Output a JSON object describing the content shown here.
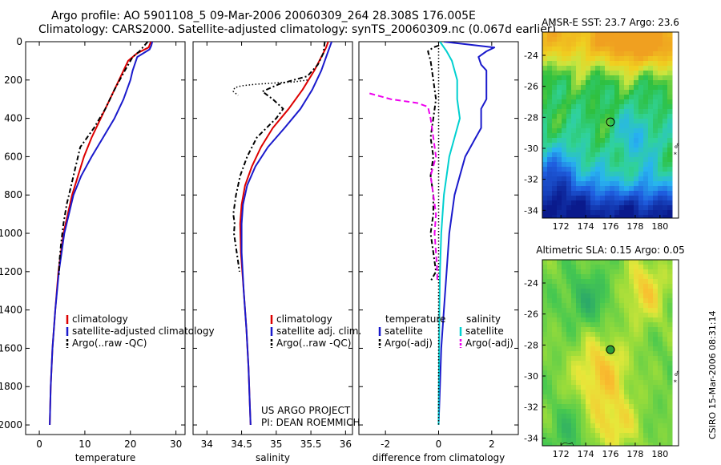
{
  "header": {
    "title_line1": "Argo profile: AO 5901108_5 09-Mar-2006 20060309_264 28.308S 176.005E",
    "title_line2": "Climatology: CARS2000. Satellite-adjusted climatology: synTS_20060309.nc (0.067d earlier)"
  },
  "credits": {
    "project": "US ARGO PROJECT",
    "pi": "PI: DEAN ROEMMICH",
    "stamp": "CSIRO 15-Mar-2006 08:31:14"
  },
  "colors": {
    "climatology": "#dd0000",
    "satellite": "#1a1acc",
    "argo": "#000000",
    "salinity_satellite": "#00d0d0",
    "salinity_argo": "#ee00ee"
  },
  "chart_data": [
    {
      "type": "line",
      "xlabel": "temperature",
      "ylabel": "",
      "xlim": [
        -3,
        32
      ],
      "ylim": [
        2050,
        0
      ],
      "xticks": [
        0,
        10,
        20,
        30
      ],
      "yticks": [
        0,
        200,
        400,
        600,
        800,
        1000,
        1200,
        1400,
        1600,
        1800,
        2000
      ],
      "legend": [
        "climatology",
        "satellite-adjusted climatology",
        "Argo(..raw -QC)"
      ],
      "series": [
        {
          "name": "climatology",
          "depth": [
            0,
            30,
            60,
            100,
            200,
            300,
            400,
            500,
            600,
            700,
            800,
            1000,
            1200,
            1400,
            1600,
            1800,
            2000
          ],
          "values": [
            24.5,
            24.0,
            21.5,
            19.5,
            17.5,
            15.5,
            13.5,
            11.5,
            9.8,
            8.5,
            7.2,
            5.3,
            4.2,
            3.5,
            2.9,
            2.5,
            2.3
          ]
        },
        {
          "name": "satellite-adjusted climatology",
          "depth": [
            0,
            20,
            40,
            80,
            150,
            200,
            300,
            400,
            500,
            600,
            700,
            800,
            1000,
            1200,
            1400,
            1600,
            1800,
            2000
          ],
          "values": [
            24.8,
            24.6,
            24.2,
            21.5,
            20.5,
            20.0,
            18.5,
            16.5,
            14.0,
            11.5,
            9.2,
            7.5,
            5.5,
            4.3,
            3.5,
            2.9,
            2.5,
            2.3
          ]
        },
        {
          "name": "Argo(..raw -QC)",
          "depth": [
            0,
            50,
            80,
            150,
            250,
            350,
            450,
            550,
            650,
            750,
            850,
            950,
            1050,
            1150,
            1220
          ],
          "values": [
            23.8,
            22.0,
            20.5,
            18.8,
            16.5,
            14.5,
            12.0,
            9.0,
            8.0,
            7.0,
            6.0,
            5.3,
            4.8,
            4.4,
            4.3
          ]
        }
      ]
    },
    {
      "type": "line",
      "xlabel": "salinity",
      "ylabel": "",
      "xlim": [
        33.8,
        36.1
      ],
      "ylim": [
        2050,
        0
      ],
      "xticks": [
        34,
        34.5,
        35,
        35.5,
        36
      ],
      "legend": [
        "climatology",
        "satellite adj. clim.",
        "Argo(..raw -QC)"
      ],
      "series": [
        {
          "name": "climatology",
          "depth": [
            0,
            30,
            80,
            150,
            250,
            350,
            450,
            550,
            650,
            750,
            850,
            950,
            1100,
            1300,
            1500,
            1700,
            1900,
            2000
          ],
          "values": [
            35.75,
            35.72,
            35.65,
            35.55,
            35.38,
            35.18,
            34.95,
            34.78,
            34.65,
            34.55,
            34.5,
            34.48,
            34.49,
            34.53,
            34.57,
            34.6,
            34.62,
            34.63
          ]
        },
        {
          "name": "satellite adj. clim.",
          "depth": [
            0,
            30,
            80,
            150,
            250,
            350,
            450,
            550,
            650,
            750,
            850,
            950,
            1100,
            1300,
            1500,
            1700,
            1900,
            2000
          ],
          "values": [
            35.8,
            35.77,
            35.72,
            35.65,
            35.52,
            35.35,
            35.12,
            34.88,
            34.7,
            34.58,
            34.52,
            34.5,
            34.5,
            34.53,
            34.57,
            34.6,
            34.62,
            34.63
          ]
        },
        {
          "name": "Argo(..raw -QC)",
          "depth": [
            0,
            60,
            120,
            180,
            220,
            260,
            300,
            350,
            400,
            500,
            600,
            700,
            800,
            900,
            950,
            1000,
            1100,
            1200
          ],
          "values": [
            35.7,
            35.68,
            35.6,
            35.45,
            35.05,
            34.8,
            34.95,
            35.1,
            35.0,
            34.72,
            34.58,
            34.48,
            34.42,
            34.38,
            34.4,
            34.39,
            34.43,
            34.47
          ]
        },
        {
          "name": "",
          "style": "dotted",
          "depth": [
            200,
            210,
            215,
            222,
            230,
            240,
            260,
            280
          ],
          "values": [
            35.45,
            35.25,
            35.0,
            34.7,
            34.5,
            34.4,
            34.38,
            34.45
          ]
        }
      ]
    },
    {
      "type": "line",
      "xlabel": "difference from climatology",
      "ylabel": "",
      "xlim": [
        -3,
        3
      ],
      "ylim": [
        2050,
        0
      ],
      "xticks": [
        -2,
        0,
        2
      ],
      "legend": [
        "temperature",
        "satellite",
        "Argo(-adj)",
        "salinity",
        "satellite",
        "Argo(-adj)"
      ],
      "series": [
        {
          "name": "temperature satellite",
          "depth": [
            0,
            30,
            50,
            80,
            120,
            150,
            200,
            250,
            300,
            350,
            400,
            450,
            500,
            550,
            600,
            700,
            800,
            900,
            1000,
            1200,
            1400,
            1600,
            1800,
            2000
          ],
          "values": [
            0.2,
            2.1,
            1.8,
            1.5,
            1.6,
            1.8,
            1.8,
            1.8,
            1.8,
            1.6,
            1.6,
            1.6,
            1.4,
            1.2,
            1.0,
            0.8,
            0.6,
            0.5,
            0.4,
            0.3,
            0.2,
            0.1,
            0.05,
            0.0
          ]
        },
        {
          "name": "temperature Argo(-adj)",
          "depth": [
            20,
            30,
            50,
            100,
            200,
            300,
            400,
            500,
            600,
            700,
            800,
            900,
            1000,
            1100,
            1200,
            1250
          ],
          "values": [
            0.0,
            -0.2,
            -0.4,
            -0.3,
            -0.2,
            -0.1,
            -0.2,
            -0.3,
            -0.2,
            -0.3,
            -0.2,
            -0.2,
            -0.3,
            -0.2,
            -0.1,
            -0.3
          ]
        },
        {
          "name": "salinity satellite",
          "depth": [
            0,
            50,
            100,
            150,
            200,
            250,
            300,
            400,
            500,
            600,
            700,
            800,
            1000,
            1200,
            1400,
            1600,
            1800,
            2000
          ],
          "values": [
            0.05,
            0.3,
            0.5,
            0.6,
            0.7,
            0.7,
            0.7,
            0.8,
            0.6,
            0.4,
            0.3,
            0.2,
            0.1,
            0.05,
            0.03,
            0.02,
            0.01,
            0.0
          ]
        },
        {
          "name": "salinity Argo(-adj)",
          "depth": [
            270,
            300,
            320,
            340,
            400,
            500,
            600,
            700,
            800,
            900,
            1000,
            1100,
            1200,
            1250
          ],
          "values": [
            -2.6,
            -1.8,
            -0.8,
            -0.4,
            -0.3,
            -0.2,
            -0.1,
            -0.3,
            -0.2,
            -0.1,
            -0.15,
            -0.1,
            -0.05,
            -0.05
          ]
        },
        {
          "name": "",
          "style": "dotted",
          "depth": [
            0,
            2000
          ],
          "values": [
            0,
            0
          ]
        }
      ]
    },
    {
      "type": "heatmap",
      "title": "AMSR-E SST: 23.7 Argo: 23.6",
      "xlim": [
        170.5,
        181.5
      ],
      "ylim": [
        -34.5,
        -22.5
      ],
      "xticks": [
        172,
        174,
        176,
        178,
        180
      ],
      "yticks": [
        -24,
        -26,
        -28,
        -30,
        -32,
        -34
      ],
      "marker": {
        "lon": 176.0,
        "lat": -28.3
      }
    },
    {
      "type": "heatmap",
      "title": "Altimetric SLA: 0.15 Argo: 0.05",
      "xlim": [
        170.5,
        181.5
      ],
      "ylim": [
        -34.5,
        -22.5
      ],
      "xticks": [
        172,
        174,
        176,
        178,
        180
      ],
      "yticks": [
        -24,
        -26,
        -28,
        -30,
        -32,
        -34
      ],
      "marker": {
        "lon": 176.0,
        "lat": -28.3
      }
    }
  ]
}
